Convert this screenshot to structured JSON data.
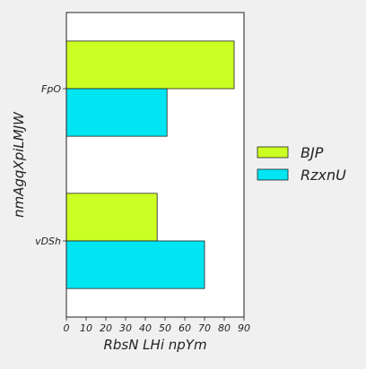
{
  "chart_data": {
    "type": "bar",
    "orientation": "horizontal",
    "categories": [
      "FpO",
      "vDSh"
    ],
    "series": [
      {
        "name": "BJP",
        "values": [
          85,
          46
        ],
        "color": "#ccff22"
      },
      {
        "name": "RzxnU",
        "values": [
          51,
          70
        ],
        "color": "#00e5f2"
      }
    ],
    "xlabel": "RbsN LHi npYm",
    "ylabel": "nmAgqXpiLMJW",
    "xlim": [
      0,
      90
    ],
    "xticks": [
      0,
      10,
      20,
      30,
      40,
      50,
      60,
      70,
      80,
      90
    ],
    "grid": false,
    "legend_position": "right",
    "colors": {
      "background": "#f0f0f0",
      "plot_background": "#ffffff",
      "bar_edge": "#222222"
    }
  }
}
